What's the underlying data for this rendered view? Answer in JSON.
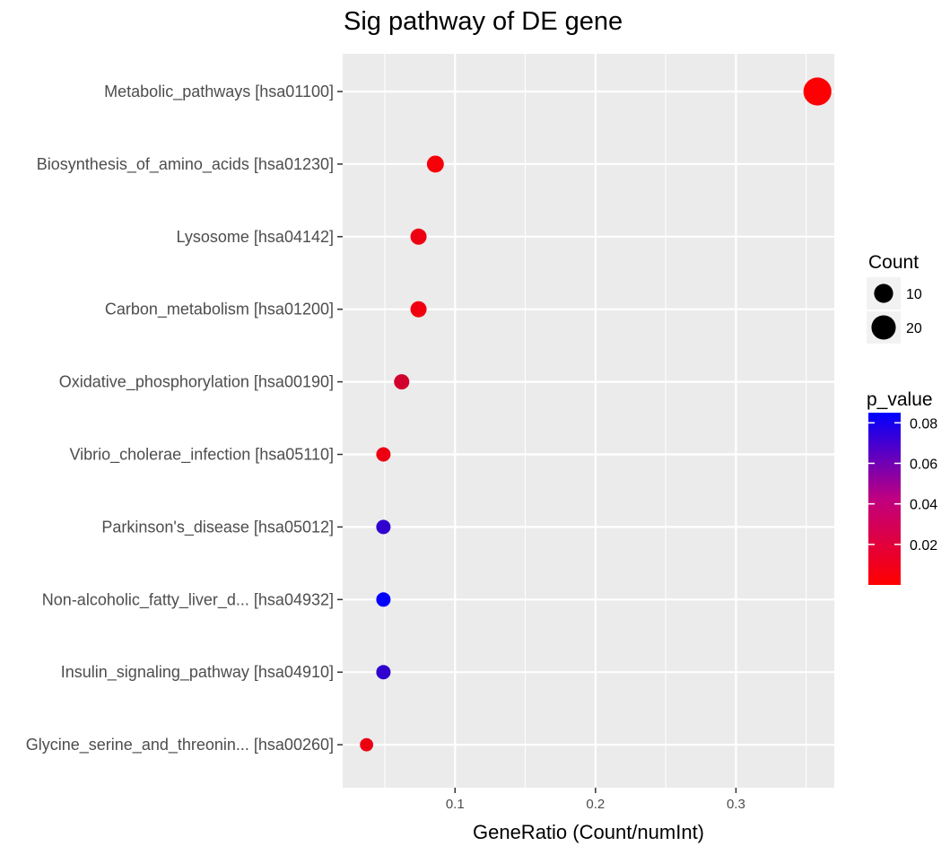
{
  "chart_data": {
    "type": "scatter",
    "title": "Sig pathway of DE gene",
    "xlabel": "GeneRatio (Count/numInt)",
    "ylabel": "",
    "xlim": [
      0.02,
      0.37
    ],
    "x_ticks": [
      0.1,
      0.2,
      0.3
    ],
    "x_tick_labels": [
      "0.1",
      "0.2",
      "0.3"
    ],
    "grid": true,
    "points": [
      {
        "label": "Metabolic_pathways [hsa01100]",
        "gene_ratio": 0.358,
        "count": 29,
        "p_value": 0.001
      },
      {
        "label": "Biosynthesis_of_amino_acids [hsa01230]",
        "gene_ratio": 0.086,
        "count": 7,
        "p_value": 0.003
      },
      {
        "label": "Lysosome [hsa04142]",
        "gene_ratio": 0.074,
        "count": 6,
        "p_value": 0.006
      },
      {
        "label": "Carbon_metabolism [hsa01200]",
        "gene_ratio": 0.074,
        "count": 6,
        "p_value": 0.005
      },
      {
        "label": "Oxidative_phosphorylation [hsa00190]",
        "gene_ratio": 0.062,
        "count": 5,
        "p_value": 0.015
      },
      {
        "label": "Vibrio_cholerae_infection [hsa05110]",
        "gene_ratio": 0.049,
        "count": 4,
        "p_value": 0.006
      },
      {
        "label": "Parkinson's_disease [hsa05012]",
        "gene_ratio": 0.049,
        "count": 4,
        "p_value": 0.069
      },
      {
        "label": "Non-alcoholic_fatty_liver_d... [hsa04932]",
        "gene_ratio": 0.049,
        "count": 4,
        "p_value": 0.085
      },
      {
        "label": "Insulin_signaling_pathway [hsa04910]",
        "gene_ratio": 0.049,
        "count": 4,
        "p_value": 0.069
      },
      {
        "label": "Glycine_serine_and_threonin... [hsa00260]",
        "gene_ratio": 0.037,
        "count": 3,
        "p_value": 0.006
      }
    ],
    "legend": {
      "size": {
        "title": "Count",
        "entries": [
          {
            "label": "10",
            "value": 10
          },
          {
            "label": "20",
            "value": 20
          }
        ]
      },
      "color": {
        "title": "p_value",
        "ticks": [
          0.02,
          0.04,
          0.06,
          0.08
        ],
        "tick_labels": [
          "0.02",
          "0.04",
          "0.06",
          "0.08"
        ],
        "range": [
          0.0,
          0.085
        ],
        "low_color": "#ff0000",
        "high_color": "#0000ff"
      },
      "placement": "right"
    },
    "colors": {
      "panel_bg": "#ebebeb",
      "grid": "#ffffff"
    }
  }
}
